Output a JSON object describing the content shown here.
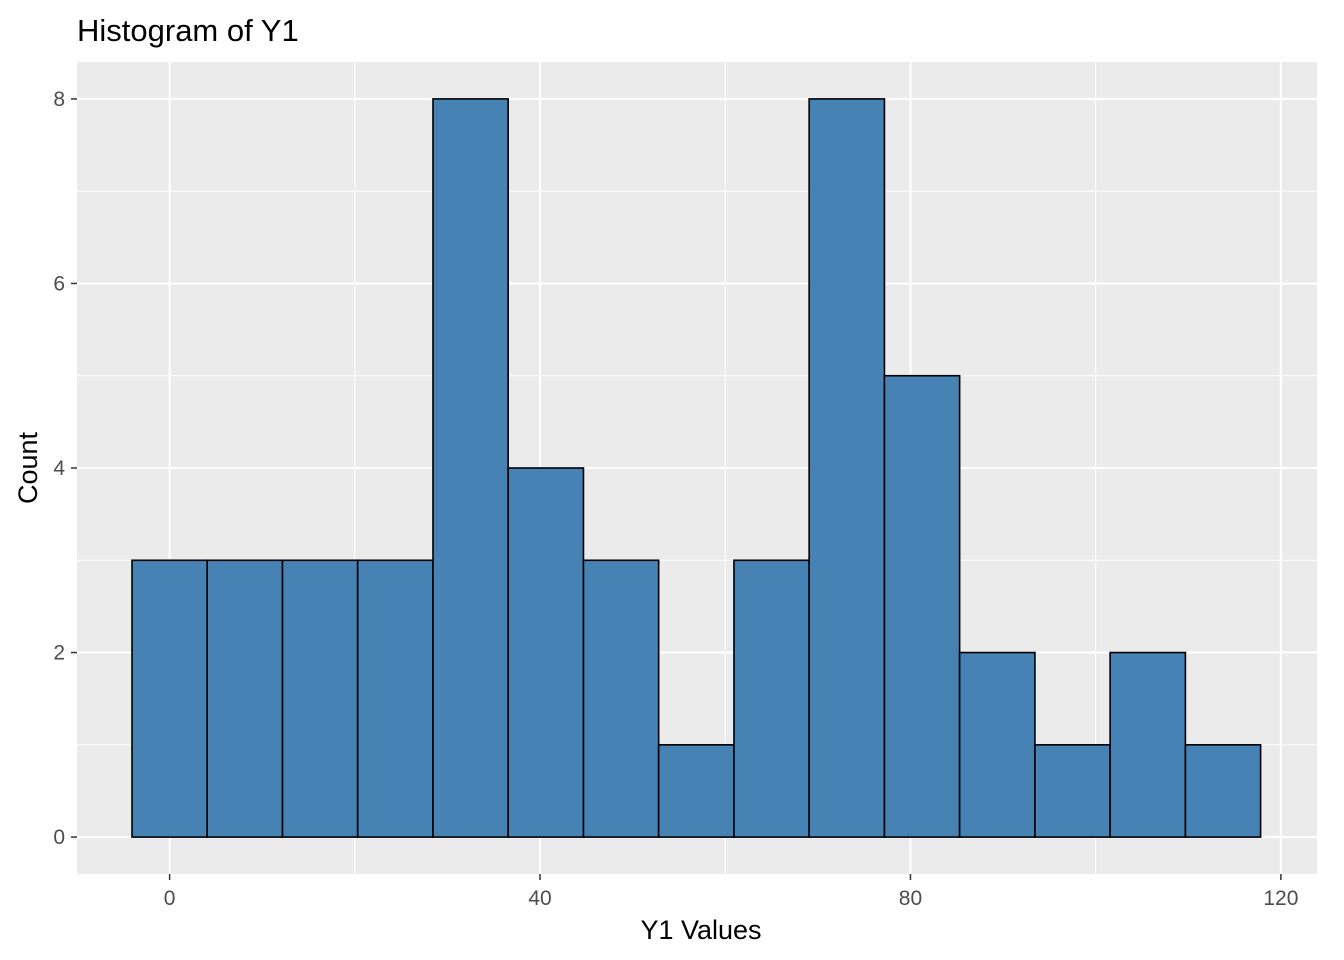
{
  "chart_data": {
    "type": "bar",
    "title": "Histogram of Y1",
    "xlabel": "Y1 Values",
    "ylabel": "Count",
    "bin_width": 8.125,
    "bins": [
      {
        "start": -4.06,
        "end": 4.06,
        "count": 3
      },
      {
        "start": 4.06,
        "end": 12.19,
        "count": 3
      },
      {
        "start": 12.19,
        "end": 20.31,
        "count": 3
      },
      {
        "start": 20.31,
        "end": 28.44,
        "count": 3
      },
      {
        "start": 28.44,
        "end": 36.56,
        "count": 8
      },
      {
        "start": 36.56,
        "end": 44.69,
        "count": 4
      },
      {
        "start": 44.69,
        "end": 52.81,
        "count": 3
      },
      {
        "start": 52.81,
        "end": 60.94,
        "count": 1
      },
      {
        "start": 60.94,
        "end": 69.06,
        "count": 3
      },
      {
        "start": 69.06,
        "end": 77.19,
        "count": 8
      },
      {
        "start": 77.19,
        "end": 85.31,
        "count": 5
      },
      {
        "start": 85.31,
        "end": 93.44,
        "count": 2
      },
      {
        "start": 93.44,
        "end": 101.56,
        "count": 1
      },
      {
        "start": 101.56,
        "end": 109.69,
        "count": 2
      },
      {
        "start": 109.69,
        "end": 117.81,
        "count": 1
      }
    ],
    "xlim": [
      -10.0,
      123.9
    ],
    "ylim": [
      -0.4,
      8.4
    ],
    "x_ticks": [
      0,
      40,
      80,
      120
    ],
    "y_ticks": [
      0,
      2,
      4,
      6,
      8
    ],
    "grid": true,
    "fill_color": "#4682B4",
    "outline_color": "#000000",
    "panel_background": "#EBEBEB",
    "grid_color": "#FFFFFF"
  }
}
